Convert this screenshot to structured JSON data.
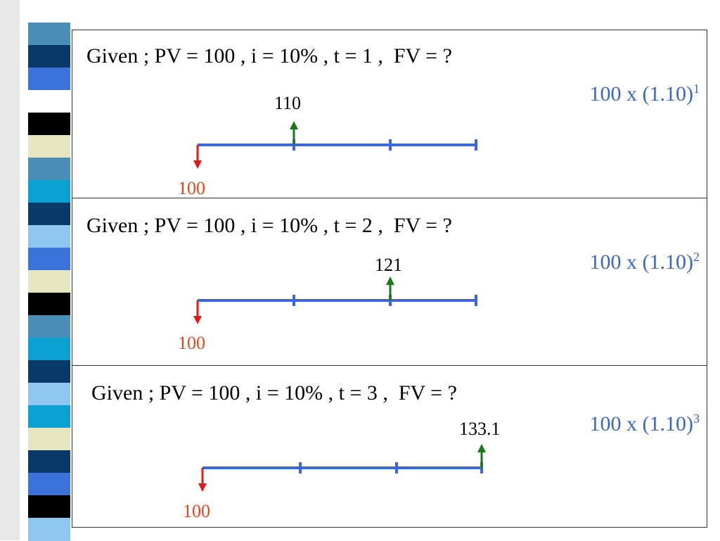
{
  "colors": {
    "timeline": "#3a66e0",
    "inflow_arrow": "#1a7a1a",
    "outflow_arrow": "#e01919",
    "formula_text": "#3a66c9",
    "pv_text": "#e5461b"
  },
  "side_strip_colors": [
    "#ffffff",
    "#4c8fb6",
    "#0a3a68",
    "#3b73da",
    "#ffffff",
    "#000000",
    "#e6e6c0",
    "#4c8fb6",
    "#0aa0d2",
    "#0a3a68",
    "#8ec6f0",
    "#3b73da",
    "#e6e6c0",
    "#000000",
    "#4c8fb6",
    "#0aa0d2",
    "#0a3a68",
    "#8ec6f0",
    "#0aa0d2",
    "#e6e6c0",
    "#0a3a68",
    "#3b73da",
    "#000000",
    "#8ec6f0"
  ],
  "panels": [
    {
      "given": "Given ; PV = 100 , i = 10% , t = 1 ,  FV = ?",
      "formula_base": "100 x (1.10)",
      "formula_exp": "1",
      "fv_value": "110",
      "pv_value": "100",
      "periods": 3,
      "fv_period": 1
    },
    {
      "given": "Given ; PV = 100 , i = 10% , t = 2 ,  FV = ?",
      "formula_base": "100 x (1.10)",
      "formula_exp": "2",
      "fv_value": "121",
      "pv_value": "100",
      "periods": 3,
      "fv_period": 2
    },
    {
      "given": "Given ; PV = 100 , i = 10% , t = 3 ,  FV = ?",
      "formula_base": "100 x (1.10)",
      "formula_exp": "3",
      "fv_value": "133.1",
      "pv_value": "100",
      "periods": 3,
      "fv_period": 3
    }
  ]
}
